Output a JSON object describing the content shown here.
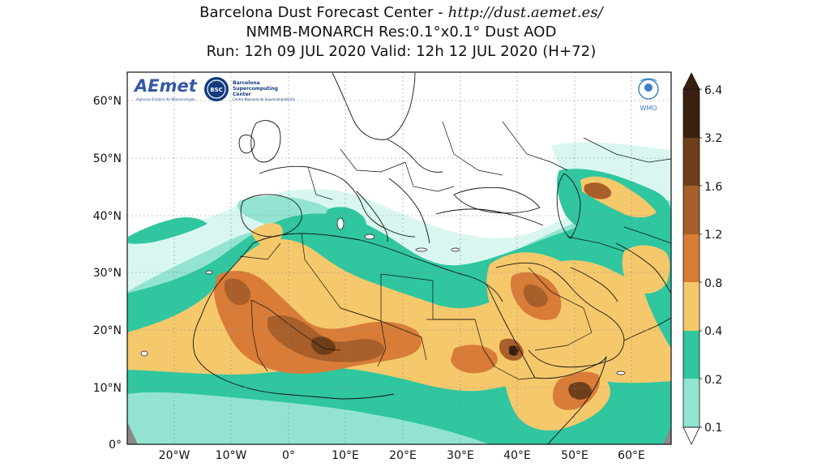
{
  "titles": {
    "line1_prefix": "Barcelona Dust Forecast Center - ",
    "line1_url": "http://dust.aemet.es/",
    "line2": "NMMB-MONARCH   Res:0.1°x0.1°   Dust AOD",
    "line3": "Run: 12h 09 JUL 2020   Valid: 12h 12 JUL 2020 (H+72)"
  },
  "axes": {
    "lat_labels": [
      "60°N",
      "50°N",
      "40°N",
      "30°N",
      "20°N",
      "10°N",
      "0°"
    ],
    "lon_labels": [
      "20°W",
      "10°W",
      "0°",
      "10°E",
      "20°E",
      "30°E",
      "40°E",
      "50°E",
      "60°E"
    ]
  },
  "colorbar": {
    "labels": [
      "6.4",
      "3.2",
      "1.6",
      "1.2",
      "0.8",
      "0.4",
      "0.2",
      "0.1"
    ],
    "colors": [
      "#3a2010",
      "#6d3e19",
      "#a85f2a",
      "#d87c38",
      "#f6c86c",
      "#2fc6a0",
      "#92e4d0",
      "#d9f7f0"
    ]
  },
  "logos": {
    "aemet": "AEmet",
    "aemet_sub": "Agencia Estatal de Meteorología",
    "bsc_badge": "BSC",
    "bsc_line1": "Barcelona",
    "bsc_line2": "Supercomputing",
    "bsc_line3": "Center",
    "bsc_line4": "Centro Nacional de Supercomputación",
    "wmo": "WMO"
  },
  "colors": {
    "very_light": "#d9f7f0",
    "light": "#92e4d0",
    "teal": "#2fc6a0",
    "sand": "#f6c86c",
    "orange": "#d87c38",
    "brown": "#a85f2a",
    "dark_brown": "#6d3e19",
    "darkest": "#3a2010"
  }
}
